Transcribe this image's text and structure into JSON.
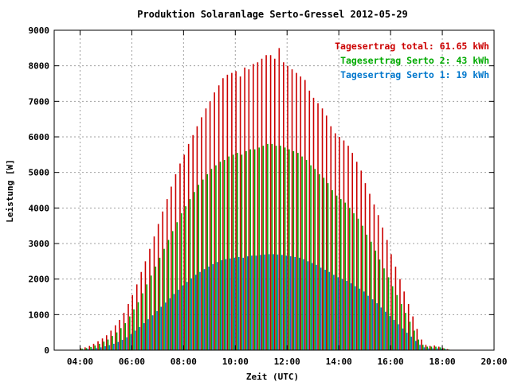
{
  "chart_data": {
    "type": "bar",
    "title": "Produktion Solaranlage Serto-Gressel 2012-05-29",
    "xlabel": "Zeit (UTC)",
    "ylabel": "Leistung [W]",
    "xlim": [
      3.0,
      20.0
    ],
    "ylim": [
      0,
      9000
    ],
    "x_ticks": [
      {
        "value": 4,
        "label": "04:00"
      },
      {
        "value": 6,
        "label": "06:00"
      },
      {
        "value": 8,
        "label": "08:00"
      },
      {
        "value": 10,
        "label": "10:00"
      },
      {
        "value": 12,
        "label": "12:00"
      },
      {
        "value": 14,
        "label": "14:00"
      },
      {
        "value": 16,
        "label": "16:00"
      },
      {
        "value": 18,
        "label": "18:00"
      },
      {
        "value": 20,
        "label": "20:00"
      }
    ],
    "y_ticks": [
      {
        "value": 0,
        "label": "0"
      },
      {
        "value": 1000,
        "label": "1000"
      },
      {
        "value": 2000,
        "label": "2000"
      },
      {
        "value": 3000,
        "label": "3000"
      },
      {
        "value": 4000,
        "label": "4000"
      },
      {
        "value": 5000,
        "label": "5000"
      },
      {
        "value": 6000,
        "label": "6000"
      },
      {
        "value": 7000,
        "label": "7000"
      },
      {
        "value": 8000,
        "label": "8000"
      },
      {
        "value": 9000,
        "label": "9000"
      }
    ],
    "grid": true,
    "legend_position": "top-right",
    "legend": [
      {
        "label": "Tagesertrag total: 61.65 kWh",
        "color": "#cc0000"
      },
      {
        "label": "Tagesertrag Serto 2: 43 kWh",
        "color": "#00aa00"
      },
      {
        "label": "Tagesertrag Serto 1: 19 kWh",
        "color": "#0077cc"
      }
    ],
    "series": [
      {
        "color": "#cc0000",
        "x": [
          4.08,
          4.25,
          4.42,
          4.58,
          4.75,
          4.92,
          5.08,
          5.25,
          5.42,
          5.58,
          5.75,
          5.92,
          6.08,
          6.25,
          6.42,
          6.58,
          6.75,
          6.92,
          7.08,
          7.25,
          7.42,
          7.58,
          7.75,
          7.92,
          8.08,
          8.25,
          8.42,
          8.58,
          8.75,
          8.92,
          9.08,
          9.25,
          9.42,
          9.58,
          9.75,
          9.92,
          10.08,
          10.25,
          10.42,
          10.58,
          10.75,
          10.92,
          11.08,
          11.25,
          11.42,
          11.58,
          11.75,
          11.92,
          12.08,
          12.25,
          12.42,
          12.58,
          12.75,
          12.92,
          13.08,
          13.25,
          13.42,
          13.58,
          13.75,
          13.92,
          14.08,
          14.25,
          14.42,
          14.58,
          14.75,
          14.92,
          15.08,
          15.25,
          15.42,
          15.58,
          15.75,
          15.92,
          16.08,
          16.25,
          16.42,
          16.58,
          16.75,
          16.92,
          17.08,
          17.25,
          17.42,
          17.58,
          17.75,
          17.92,
          18.08,
          18.25,
          18.42,
          18.58,
          18.75,
          18.92
        ],
        "values": [
          50,
          80,
          120,
          180,
          250,
          330,
          420,
          550,
          700,
          850,
          1050,
          1300,
          1550,
          1850,
          2200,
          2500,
          2850,
          3200,
          3550,
          3900,
          4250,
          4600,
          4950,
          5250,
          5500,
          5800,
          6050,
          6300,
          6550,
          6800,
          7000,
          7250,
          7450,
          7650,
          7750,
          7800,
          7850,
          7700,
          7950,
          7900,
          8050,
          8100,
          8200,
          8300,
          8300,
          8200,
          8500,
          8100,
          8000,
          7900,
          7800,
          7700,
          7600,
          7300,
          7100,
          6950,
          6800,
          6600,
          6300,
          6100,
          6000,
          5900,
          5750,
          5550,
          5300,
          5050,
          4700,
          4400,
          4100,
          3800,
          3450,
          3100,
          2700,
          2350,
          2000,
          1650,
          1300,
          950,
          600,
          300,
          150,
          120,
          130,
          100,
          60,
          30,
          0,
          0,
          0,
          0
        ]
      },
      {
        "color": "#00aa00",
        "x": [
          4.08,
          4.25,
          4.42,
          4.58,
          4.75,
          4.92,
          5.08,
          5.25,
          5.42,
          5.58,
          5.75,
          5.92,
          6.08,
          6.25,
          6.42,
          6.58,
          6.75,
          6.92,
          7.08,
          7.25,
          7.42,
          7.58,
          7.75,
          7.92,
          8.08,
          8.25,
          8.42,
          8.58,
          8.75,
          8.92,
          9.08,
          9.25,
          9.42,
          9.58,
          9.75,
          9.92,
          10.08,
          10.25,
          10.42,
          10.58,
          10.75,
          10.92,
          11.08,
          11.25,
          11.42,
          11.58,
          11.75,
          11.92,
          12.08,
          12.25,
          12.42,
          12.58,
          12.75,
          12.92,
          13.08,
          13.25,
          13.42,
          13.58,
          13.75,
          13.92,
          14.08,
          14.25,
          14.42,
          14.58,
          14.75,
          14.92,
          15.08,
          15.25,
          15.42,
          15.58,
          15.75,
          15.92,
          16.08,
          16.25,
          16.42,
          16.58,
          16.75,
          16.92,
          17.08,
          17.25,
          17.42,
          17.58,
          17.75,
          17.92,
          18.08,
          18.25,
          18.42,
          18.58,
          18.75,
          18.92
        ],
        "values": [
          40,
          60,
          90,
          130,
          180,
          240,
          300,
          400,
          500,
          620,
          760,
          950,
          1150,
          1350,
          1600,
          1850,
          2100,
          2350,
          2600,
          2850,
          3100,
          3350,
          3600,
          3850,
          4050,
          4250,
          4450,
          4650,
          4800,
          4950,
          5100,
          5200,
          5300,
          5350,
          5450,
          5500,
          5550,
          5500,
          5600,
          5650,
          5650,
          5700,
          5750,
          5800,
          5800,
          5750,
          5750,
          5700,
          5650,
          5600,
          5550,
          5450,
          5350,
          5200,
          5100,
          4950,
          4850,
          4700,
          4500,
          4350,
          4250,
          4150,
          4000,
          3850,
          3700,
          3500,
          3250,
          3050,
          2800,
          2550,
          2300,
          2050,
          1800,
          1550,
          1300,
          1050,
          800,
          550,
          300,
          150,
          100,
          100,
          100,
          80,
          50,
          20,
          0,
          0,
          0,
          0
        ]
      },
      {
        "color": "#0077cc",
        "x": [
          4.08,
          4.25,
          4.42,
          4.58,
          4.75,
          4.92,
          5.08,
          5.25,
          5.42,
          5.58,
          5.75,
          5.92,
          6.08,
          6.25,
          6.42,
          6.58,
          6.75,
          6.92,
          7.08,
          7.25,
          7.42,
          7.58,
          7.75,
          7.92,
          8.08,
          8.25,
          8.42,
          8.58,
          8.75,
          8.92,
          9.08,
          9.25,
          9.42,
          9.58,
          9.75,
          9.92,
          10.08,
          10.25,
          10.42,
          10.58,
          10.75,
          10.92,
          11.08,
          11.25,
          11.42,
          11.58,
          11.75,
          11.92,
          12.08,
          12.25,
          12.42,
          12.58,
          12.75,
          12.92,
          13.08,
          13.25,
          13.42,
          13.58,
          13.75,
          13.92,
          14.08,
          14.25,
          14.42,
          14.58,
          14.75,
          14.92,
          15.08,
          15.25,
          15.42,
          15.58,
          15.75,
          15.92,
          16.08,
          16.25,
          16.42,
          16.58,
          16.75,
          16.92,
          17.08,
          17.25,
          17.42,
          17.58,
          17.75,
          17.92,
          18.08,
          18.25,
          18.42,
          18.58,
          18.75,
          18.92
        ],
        "values": [
          20,
          30,
          40,
          60,
          80,
          110,
          140,
          180,
          230,
          290,
          360,
          450,
          550,
          650,
          760,
          870,
          980,
          1100,
          1220,
          1340,
          1460,
          1580,
          1700,
          1820,
          1920,
          2020,
          2120,
          2200,
          2280,
          2350,
          2420,
          2480,
          2530,
          2560,
          2580,
          2600,
          2620,
          2600,
          2640,
          2660,
          2660,
          2680,
          2690,
          2700,
          2700,
          2690,
          2680,
          2660,
          2640,
          2620,
          2600,
          2560,
          2500,
          2450,
          2400,
          2320,
          2260,
          2200,
          2120,
          2050,
          2000,
          1950,
          1880,
          1800,
          1730,
          1650,
          1530,
          1430,
          1320,
          1200,
          1080,
          960,
          850,
          730,
          610,
          490,
          380,
          260,
          150,
          80,
          50,
          50,
          50,
          40,
          25,
          10,
          0,
          0,
          0,
          0
        ]
      }
    ]
  }
}
